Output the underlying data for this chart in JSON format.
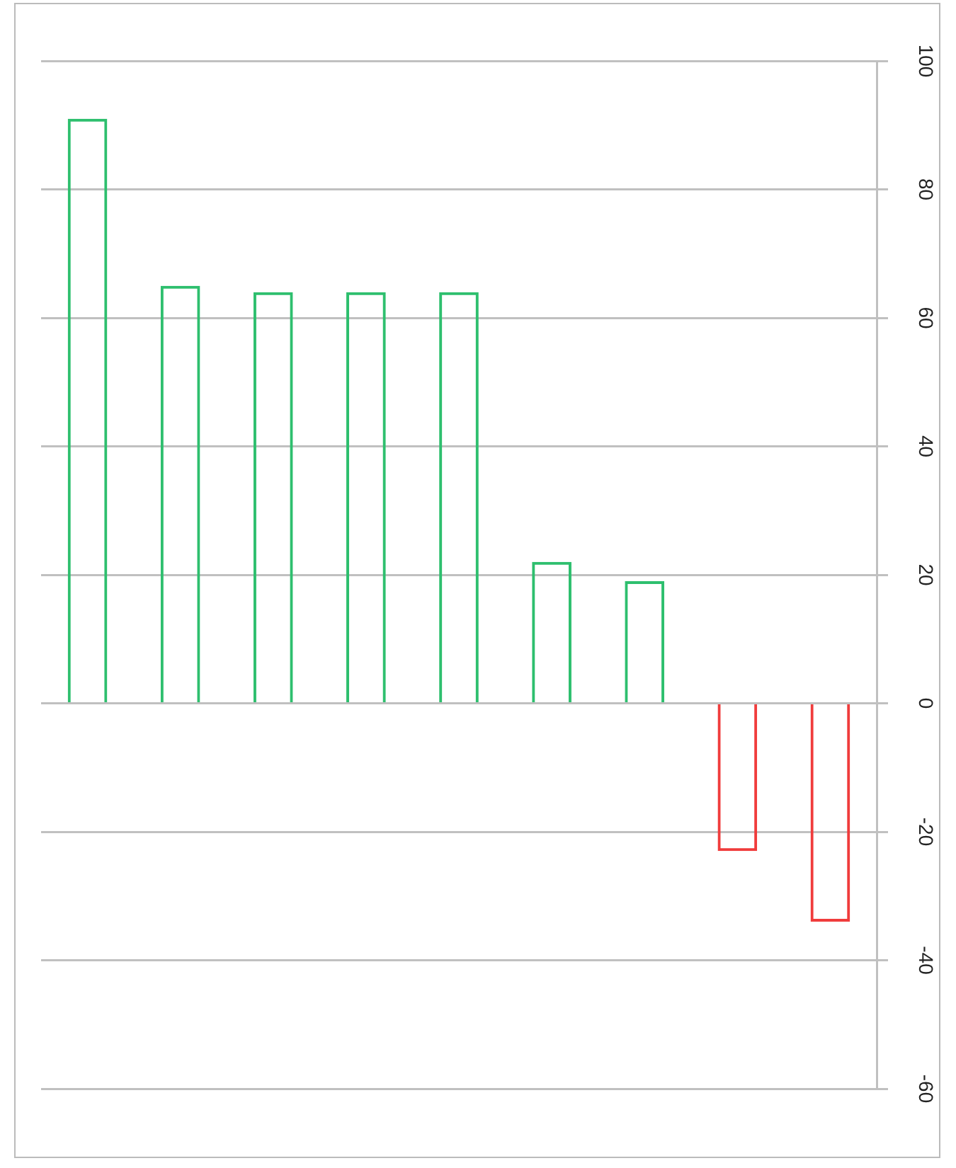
{
  "chart_data": {
    "type": "bar",
    "categories": [
      null,
      null,
      null,
      null,
      null,
      null,
      null,
      null,
      null
    ],
    "values": [
      91,
      65,
      64,
      64,
      64,
      22,
      19,
      -23,
      -34
    ],
    "colors": [
      "#2ebf6e",
      "#2ebf6e",
      "#2ebf6e",
      "#2ebf6e",
      "#2ebf6e",
      "#2ebf6e",
      "#2ebf6e",
      "#f03c3c",
      "#f03c3c"
    ],
    "ylim": [
      -60,
      100
    ],
    "yticks": [
      -60,
      -40,
      -20,
      0,
      20,
      40,
      60,
      80,
      100
    ],
    "grid": "y",
    "legend": false
  }
}
